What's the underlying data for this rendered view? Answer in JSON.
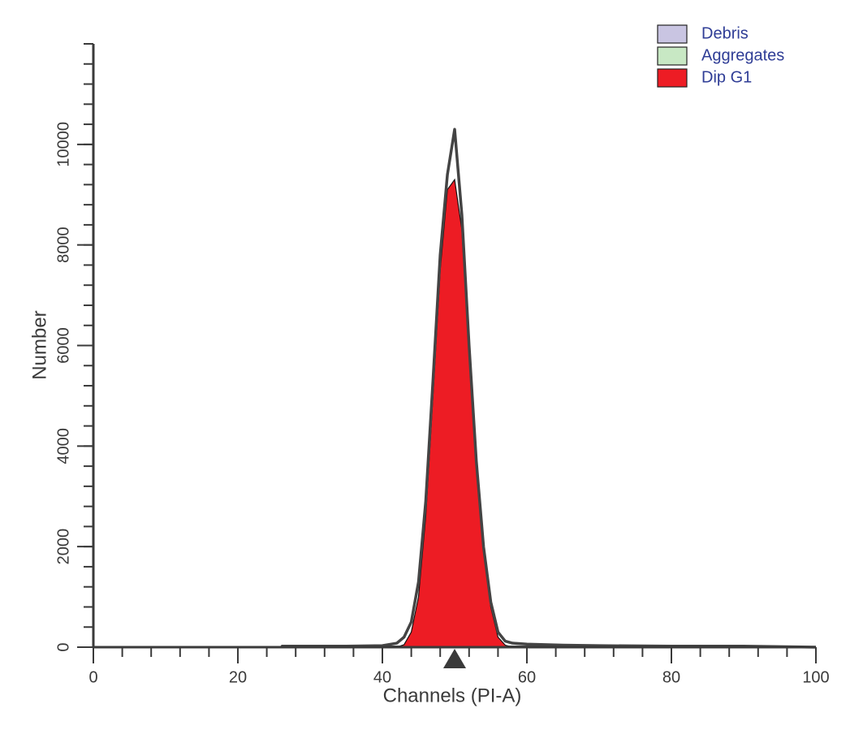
{
  "chart_data": {
    "type": "histogram",
    "x_label": "Channels (PI-A)",
    "y_label": "Number",
    "xlim": [
      0,
      100
    ],
    "ylim": [
      0,
      12000
    ],
    "xticks": [
      0,
      20,
      40,
      60,
      80,
      100
    ],
    "yticks": [
      0,
      2000,
      4000,
      6000,
      8000,
      10000
    ],
    "xminor": [
      0,
      4,
      8,
      12,
      16,
      20,
      24,
      28,
      32,
      36,
      40,
      44,
      48,
      52,
      56,
      60,
      64,
      68,
      72,
      76,
      80,
      84,
      88,
      92,
      96,
      100
    ],
    "yminor": [
      0,
      400,
      800,
      1200,
      1600,
      2000,
      2400,
      2800,
      3200,
      3600,
      4000,
      4400,
      4800,
      5200,
      5600,
      6000,
      6400,
      6800,
      7200,
      7600,
      8000,
      8400,
      8800,
      9200,
      9600,
      10000,
      10400,
      10800,
      11200,
      11600,
      12000
    ],
    "axis_color": "#3a3a3a",
    "marker_x": 50,
    "x": [
      26,
      30,
      35,
      40,
      42,
      43,
      44,
      45,
      46,
      47,
      48,
      49,
      50,
      51,
      52,
      53,
      54,
      55,
      56,
      57,
      58,
      60,
      65,
      70,
      80,
      90,
      100
    ],
    "series": [
      {
        "name": "Debris",
        "color": "#c9c5e2",
        "style": "area",
        "values": [
          20,
          20,
          20,
          20,
          20,
          20,
          20,
          20,
          20,
          20,
          20,
          20,
          20,
          20,
          20,
          20,
          20,
          20,
          20,
          20,
          20,
          20,
          20,
          20,
          15,
          10,
          0
        ]
      },
      {
        "name": "Aggregates",
        "color": "#c8e8c4",
        "style": "area",
        "values": [
          0,
          0,
          0,
          0,
          0,
          0,
          0,
          0,
          0,
          0,
          0,
          0,
          0,
          0,
          0,
          0,
          0,
          0,
          0,
          0,
          0,
          0,
          0,
          0,
          0,
          0,
          0
        ]
      },
      {
        "name": "Dip G1",
        "color": "#ed1c24",
        "style": "area",
        "values": [
          0,
          0,
          0,
          0,
          0,
          50,
          300,
          1000,
          2600,
          5000,
          7500,
          9100,
          9300,
          8300,
          5900,
          3600,
          1900,
          800,
          200,
          40,
          0,
          0,
          0,
          0,
          0,
          0,
          0
        ]
      },
      {
        "color": "#444444",
        "style": "line",
        "values": [
          20,
          20,
          20,
          30,
          80,
          200,
          500,
          1300,
          2900,
          5300,
          7800,
          9400,
          10300,
          8600,
          6000,
          3700,
          2000,
          900,
          300,
          120,
          80,
          60,
          40,
          30,
          20,
          20,
          0
        ]
      }
    ]
  }
}
